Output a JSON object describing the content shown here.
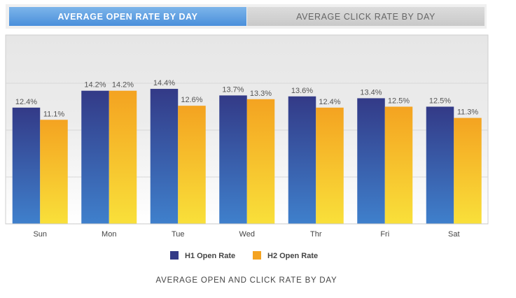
{
  "tabs": [
    {
      "label": "AVERAGE OPEN RATE BY DAY",
      "active": true
    },
    {
      "label": "AVERAGE CLICK RATE BY DAY",
      "active": false
    }
  ],
  "chart_data": {
    "type": "bar",
    "title": "AVERAGE OPEN AND CLICK RATE BY DAY",
    "categories": [
      "Sun",
      "Mon",
      "Tue",
      "Wed",
      "Thr",
      "Fri",
      "Sat"
    ],
    "series": [
      {
        "name": "H1 Open Rate",
        "values": [
          12.4,
          14.2,
          14.4,
          13.7,
          13.6,
          13.4,
          12.5
        ],
        "color": "#333a87",
        "color_bottom": "#3f80cc"
      },
      {
        "name": "H2 Open Rate",
        "values": [
          11.1,
          14.2,
          12.6,
          13.3,
          12.4,
          12.5,
          11.3
        ],
        "color": "#f4a321",
        "color_bottom": "#f9e03a"
      }
    ],
    "value_suffix": "%",
    "ylim": [
      0,
      20
    ],
    "gridlines": [
      5,
      10,
      15
    ],
    "legend": "bottom",
    "xlabel": "",
    "ylabel": ""
  }
}
